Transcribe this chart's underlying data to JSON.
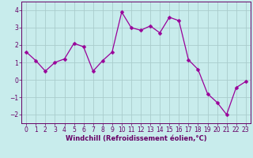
{
  "x": [
    0,
    1,
    2,
    3,
    4,
    5,
    6,
    7,
    8,
    9,
    10,
    11,
    12,
    13,
    14,
    15,
    16,
    17,
    18,
    19,
    20,
    21,
    22,
    23
  ],
  "y": [
    1.6,
    1.1,
    0.5,
    1.0,
    1.2,
    2.1,
    1.9,
    0.5,
    1.1,
    1.6,
    3.9,
    3.0,
    2.85,
    3.1,
    2.7,
    3.6,
    3.4,
    1.15,
    0.6,
    -0.8,
    -1.3,
    -2.0,
    -0.45,
    -0.1
  ],
  "line_color": "#990099",
  "marker_color": "#990099",
  "bg_color": "#c8ecec",
  "grid_color": "#aacccc",
  "xlabel": "Windchill (Refroidissement éolien,°C)",
  "xlim": [
    -0.5,
    23.5
  ],
  "ylim": [
    -2.5,
    4.5
  ],
  "yticks": [
    -2,
    -1,
    0,
    1,
    2,
    3,
    4
  ],
  "xticks": [
    0,
    1,
    2,
    3,
    4,
    5,
    6,
    7,
    8,
    9,
    10,
    11,
    12,
    13,
    14,
    15,
    16,
    17,
    18,
    19,
    20,
    21,
    22,
    23
  ],
  "tick_color": "#660066",
  "label_fontsize": 6.0,
  "tick_fontsize": 5.5,
  "marker_size": 2.5,
  "line_width": 0.9
}
